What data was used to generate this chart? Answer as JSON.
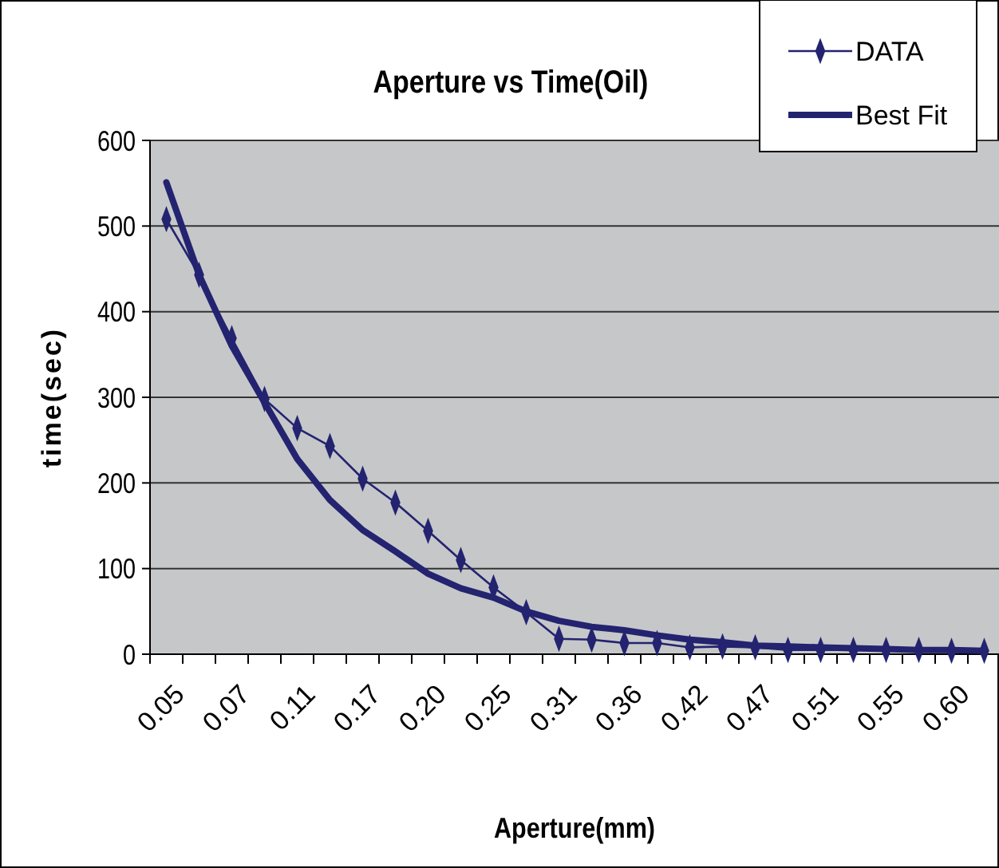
{
  "chart_data": {
    "type": "line",
    "title": "Aperture vs Time(Oil)",
    "xlabel": "Aperture(mm)",
    "ylabel": "time(sec)",
    "categories": [
      "0.05",
      null,
      "0.07",
      null,
      "0.11",
      null,
      "0.17",
      null,
      "0.20",
      null,
      "0.25",
      null,
      "0.31",
      null,
      "0.36",
      null,
      "0.42",
      null,
      "0.47",
      null,
      "0.51",
      null,
      "0.55",
      null,
      "0.60",
      null
    ],
    "series": [
      {
        "name": "DATA",
        "color": "#232370",
        "marker": "diamond",
        "values": [
          508,
          443,
          369,
          298,
          264,
          243,
          205,
          177,
          144,
          110,
          78,
          49,
          18,
          17,
          13,
          13,
          8,
          9,
          8,
          5,
          5,
          5,
          5,
          5,
          4,
          4
        ]
      },
      {
        "name": "Best Fit",
        "color": "#232370",
        "marker": "none",
        "values": [
          551,
          443,
          360,
          294,
          228,
          180,
          145,
          120,
          94,
          77,
          66,
          50,
          39,
          32,
          28,
          22,
          17,
          14,
          10,
          9,
          8,
          7,
          6,
          5,
          5,
          4
        ]
      }
    ],
    "ylim": [
      0,
      600
    ],
    "yticks": [
      0,
      100,
      200,
      300,
      400,
      500,
      600
    ],
    "grid": "y",
    "legend": "top right"
  }
}
